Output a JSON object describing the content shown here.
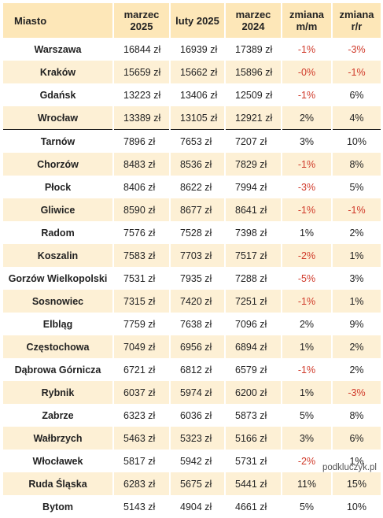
{
  "headers": [
    "Miasto",
    "marzec 2025",
    "luty 2025",
    "marzec 2024",
    "zmiana m/m",
    "zmiana r/r"
  ],
  "rows": [
    {
      "city": "Warszawa",
      "marzec_2025": "16844 zł",
      "luty_2025": "16939 zł",
      "marzec_2024": "17389 zł",
      "mm": "-1%",
      "rr": "-3%"
    },
    {
      "city": "Kraków",
      "marzec_2025": "15659 zł",
      "luty_2025": "15662 zł",
      "marzec_2024": "15896 zł",
      "mm": "-0%",
      "rr": "-1%"
    },
    {
      "city": "Gdańsk",
      "marzec_2025": "13223 zł",
      "luty_2025": "13406 zł",
      "marzec_2024": "12509 zł",
      "mm": "-1%",
      "rr": "6%"
    },
    {
      "city": "Wrocław",
      "marzec_2025": "13389 zł",
      "luty_2025": "13105 zł",
      "marzec_2024": "12921 zł",
      "mm": "2%",
      "rr": "4%"
    },
    {
      "city": "Tarnów",
      "marzec_2025": "7896 zł",
      "luty_2025": "7653 zł",
      "marzec_2024": "7207 zł",
      "mm": "3%",
      "rr": "10%"
    },
    {
      "city": "Chorzów",
      "marzec_2025": "8483 zł",
      "luty_2025": "8536 zł",
      "marzec_2024": "7829 zł",
      "mm": "-1%",
      "rr": "8%"
    },
    {
      "city": "Płock",
      "marzec_2025": "8406 zł",
      "luty_2025": "8622 zł",
      "marzec_2024": "7994 zł",
      "mm": "-3%",
      "rr": "5%"
    },
    {
      "city": "Gliwice",
      "marzec_2025": "8590 zł",
      "luty_2025": "8677 zł",
      "marzec_2024": "8641 zł",
      "mm": "-1%",
      "rr": "-1%"
    },
    {
      "city": "Radom",
      "marzec_2025": "7576 zł",
      "luty_2025": "7528 zł",
      "marzec_2024": "7398 zł",
      "mm": "1%",
      "rr": "2%"
    },
    {
      "city": "Koszalin",
      "marzec_2025": "7583 zł",
      "luty_2025": "7703 zł",
      "marzec_2024": "7517 zł",
      "mm": "-2%",
      "rr": "1%"
    },
    {
      "city": "Gorzów Wielkopolski",
      "marzec_2025": "7531 zł",
      "luty_2025": "7935 zł",
      "marzec_2024": "7288 zł",
      "mm": "-5%",
      "rr": "3%"
    },
    {
      "city": "Sosnowiec",
      "marzec_2025": "7315 zł",
      "luty_2025": "7420 zł",
      "marzec_2024": "7251 zł",
      "mm": "-1%",
      "rr": "1%"
    },
    {
      "city": "Elbląg",
      "marzec_2025": "7759 zł",
      "luty_2025": "7638 zł",
      "marzec_2024": "7096 zł",
      "mm": "2%",
      "rr": "9%"
    },
    {
      "city": "Częstochowa",
      "marzec_2025": "7049 zł",
      "luty_2025": "6956 zł",
      "marzec_2024": "6894 zł",
      "mm": "1%",
      "rr": "2%"
    },
    {
      "city": "Dąbrowa Górnicza",
      "marzec_2025": "6721 zł",
      "luty_2025": "6812 zł",
      "marzec_2024": "6579 zł",
      "mm": "-1%",
      "rr": "2%"
    },
    {
      "city": "Rybnik",
      "marzec_2025": "6037 zł",
      "luty_2025": "5974 zł",
      "marzec_2024": "6200 zł",
      "mm": "1%",
      "rr": "-3%"
    },
    {
      "city": "Zabrze",
      "marzec_2025": "6323 zł",
      "luty_2025": "6036 zł",
      "marzec_2024": "5873 zł",
      "mm": "5%",
      "rr": "8%"
    },
    {
      "city": "Wałbrzych",
      "marzec_2025": "5463 zł",
      "luty_2025": "5323 zł",
      "marzec_2024": "5166 zł",
      "mm": "3%",
      "rr": "6%"
    },
    {
      "city": "Włocławek",
      "marzec_2025": "5817 zł",
      "luty_2025": "5942 zł",
      "marzec_2024": "5731 zł",
      "mm": "-2%",
      "rr": "1%"
    },
    {
      "city": "Ruda Śląska",
      "marzec_2025": "6283 zł",
      "luty_2025": "5675 zł",
      "marzec_2024": "5441 zł",
      "mm": "11%",
      "rr": "15%"
    },
    {
      "city": "Bytom",
      "marzec_2025": "5143 zł",
      "luty_2025": "4904 zł",
      "marzec_2024": "4661 zł",
      "mm": "5%",
      "rr": "10%"
    }
  ],
  "colors": {
    "header_bg": "#fde7b8",
    "stripe_bg": "#fdf0d5",
    "negative": "#d03a2a"
  },
  "source": "podkluczyk.pl"
}
